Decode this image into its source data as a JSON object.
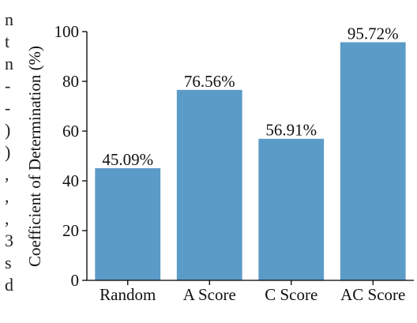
{
  "chart_data": {
    "type": "bar",
    "categories": [
      "Random",
      "A Score",
      "C Score",
      "AC Score"
    ],
    "values": [
      45.09,
      76.56,
      56.91,
      95.72
    ],
    "data_labels": [
      "45.09%",
      "76.56%",
      "56.91%",
      "95.72%"
    ],
    "title": "",
    "xlabel": "",
    "ylabel": "Coefficient of Determination (%)",
    "ylim": [
      0,
      100
    ],
    "yticks": [
      0,
      20,
      40,
      60,
      80,
      100
    ],
    "grid": false,
    "bar_color": "#5b9bc8"
  }
}
